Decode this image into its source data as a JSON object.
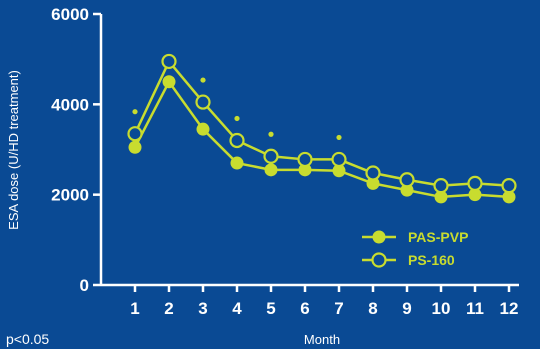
{
  "chart_data": {
    "type": "line",
    "xlabel": "Month",
    "ylabel": "ESA dose (U/HD treatment)",
    "x": [
      1,
      2,
      3,
      4,
      5,
      6,
      7,
      8,
      9,
      10,
      11,
      12
    ],
    "xlim": [
      0,
      12
    ],
    "ylim": [
      0,
      6000
    ],
    "y_ticks": [
      0,
      2000,
      4000,
      6000
    ],
    "series": [
      {
        "name": "PAS-PVP",
        "marker": "filled-circle",
        "values": [
          3050,
          4500,
          3450,
          2700,
          2550,
          2550,
          2530,
          2250,
          2100,
          1950,
          2000,
          1950
        ]
      },
      {
        "name": "PS-160",
        "marker": "open-circle",
        "values": [
          3350,
          4950,
          4050,
          3200,
          2850,
          2780,
          2780,
          2480,
          2330,
          2200,
          2250,
          2200
        ]
      }
    ],
    "significance": {
      "marker": "dot",
      "months": [
        1,
        3,
        4,
        5,
        7
      ],
      "note": "p<0.05"
    },
    "legend_position": "bottom-right",
    "grid": false,
    "colors": {
      "background": "#0a4a94",
      "series": "#c8dc2f",
      "marker_fill_open": "#0a4a94",
      "axis": "#ffffff"
    }
  }
}
